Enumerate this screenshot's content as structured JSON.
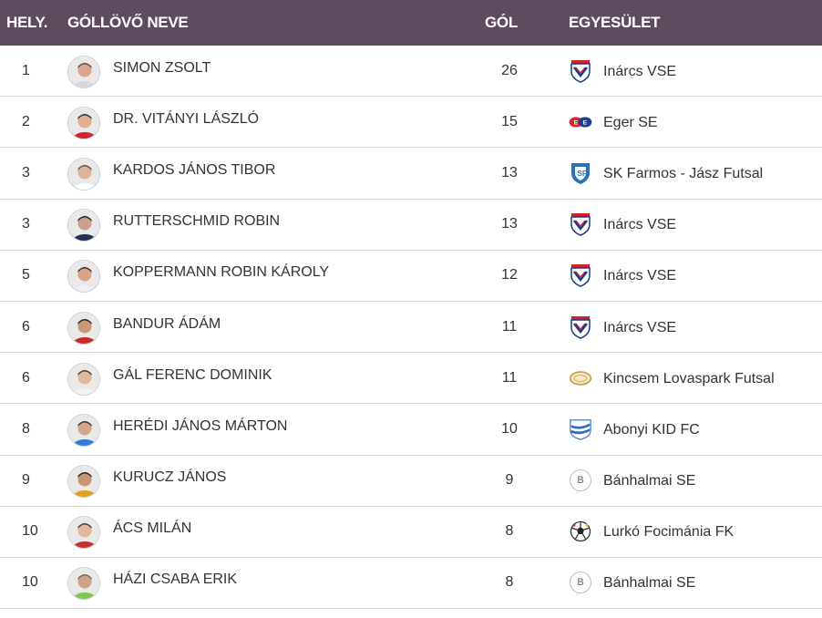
{
  "header": {
    "rank": "HELY.",
    "name": "GÓLLÖVŐ NEVE",
    "goals": "GÓL",
    "club": "EGYESÜLET"
  },
  "colors": {
    "header_bg": "#5e4b5e",
    "header_text": "#ffffff",
    "row_border": "#d9d9d9"
  },
  "rows": [
    {
      "rank": "1",
      "name": "SIMON ZSOLT",
      "goals": "26",
      "club": "Inárcs VSE",
      "club_icon": "inarcs-crest-icon"
    },
    {
      "rank": "2",
      "name": "DR. VITÁNYI LÁSZLÓ",
      "goals": "15",
      "club": "Eger SE",
      "club_icon": "eger-logo-icon"
    },
    {
      "rank": "3",
      "name": "KARDOS JÁNOS TIBOR",
      "goals": "13",
      "club": "SK Farmos - Jász Futsal",
      "club_icon": "farmos-crest-icon"
    },
    {
      "rank": "3",
      "name": "RUTTERSCHMID ROBIN",
      "goals": "13",
      "club": "Inárcs VSE",
      "club_icon": "inarcs-crest-icon"
    },
    {
      "rank": "5",
      "name": "KOPPERMANN ROBIN KÁROLY",
      "goals": "12",
      "club": "Inárcs VSE",
      "club_icon": "inarcs-crest-icon"
    },
    {
      "rank": "6",
      "name": "BANDUR ÁDÁM",
      "goals": "11",
      "club": "Inárcs VSE",
      "club_icon": "inarcs-crest-icon"
    },
    {
      "rank": "6",
      "name": "GÁL FERENC DOMINIK",
      "goals": "11",
      "club": "Kincsem Lovaspark Futsal",
      "club_icon": "kincsem-logo-icon"
    },
    {
      "rank": "8",
      "name": "HERÉDI JÁNOS MÁRTON",
      "goals": "10",
      "club": "Abonyi KID FC",
      "club_icon": "abonyi-crest-icon"
    },
    {
      "rank": "9",
      "name": "KURUCZ JÁNOS",
      "goals": "9",
      "club": "Bánhalmai SE",
      "club_icon": "banhalmai-badge-icon",
      "club_badge": "B"
    },
    {
      "rank": "10",
      "name": "ÁCS MILÁN",
      "goals": "8",
      "club": "Lurkó Focimánia FK",
      "club_icon": "soccer-ball-icon"
    },
    {
      "rank": "10",
      "name": "HÁZI CSABA ERIK",
      "goals": "8",
      "club": "Bánhalmai SE",
      "club_icon": "banhalmai-badge-icon",
      "club_badge": "B"
    }
  ]
}
